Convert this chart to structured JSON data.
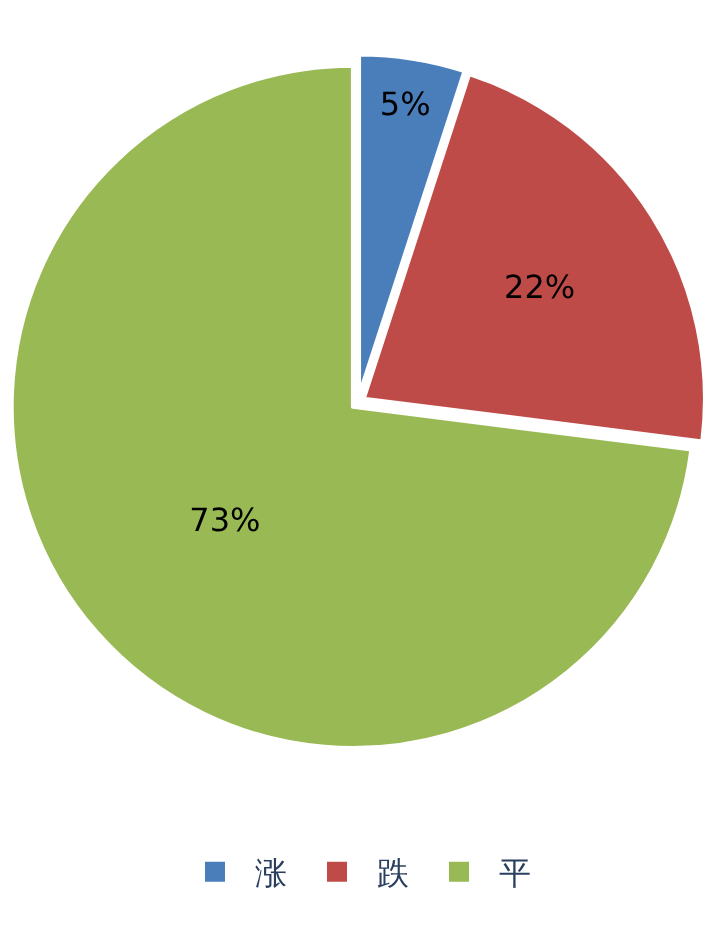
{
  "chart_data": {
    "type": "pie",
    "categories": [
      "涨",
      "跌",
      "平"
    ],
    "values": [
      5,
      22,
      73
    ],
    "colors": [
      "#4a7ebb",
      "#be4b48",
      "#98b954"
    ],
    "value_labels": [
      "5%",
      "22%",
      "73%"
    ],
    "legend": "bottom"
  }
}
